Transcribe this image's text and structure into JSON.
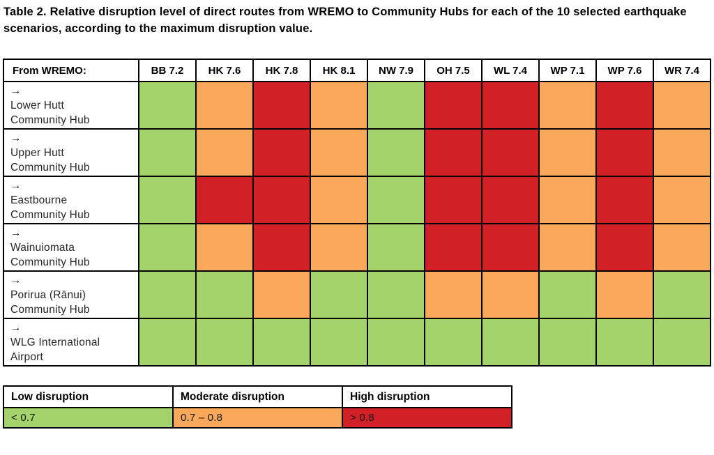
{
  "title": "Table 2. Relative disruption level of direct routes from WREMO to Community Hubs for each of the 10 selected earthquake scenarios, according to the maximum disruption value.",
  "arrow": "→",
  "corner_header": "From WREMO:",
  "colors": {
    "low": "#a5d36b",
    "moderate": "#faa95c",
    "high": "#d22027"
  },
  "chart_data": {
    "type": "heatmap",
    "title": "Table 2. Relative disruption level of direct routes from WREMO to Community Hubs for each of the 10 selected earthquake scenarios, according to the maximum disruption value.",
    "x_categories": [
      "BB 7.2",
      "HK 7.6",
      "HK 7.8",
      "HK 8.1",
      "NW 7.9",
      "OH 7.5",
      "WL 7.4",
      "WP 7.1",
      "WP 7.6",
      "WR 7.4"
    ],
    "y_categories": [
      "Lower Hutt Community Hub",
      "Upper Hutt Community Hub",
      "Eastbourne Community Hub",
      "Wainuiomata Community Hub",
      "Porirua (Rānui) Community Hub",
      "WLG International Airport"
    ],
    "y_labels_two_line": [
      [
        "Lower Hutt",
        "Community Hub"
      ],
      [
        "Upper Hutt",
        "Community Hub"
      ],
      [
        "Eastbourne",
        "Community Hub"
      ],
      [
        "Wainuiomata",
        "Community Hub"
      ],
      [
        "Porirua (Rānui)",
        "Community Hub"
      ],
      [
        "WLG International",
        "Airport"
      ]
    ],
    "values": [
      [
        "low",
        "moderate",
        "high",
        "moderate",
        "low",
        "high",
        "high",
        "moderate",
        "high",
        "moderate"
      ],
      [
        "low",
        "moderate",
        "high",
        "moderate",
        "low",
        "high",
        "high",
        "moderate",
        "high",
        "moderate"
      ],
      [
        "low",
        "high",
        "high",
        "moderate",
        "low",
        "high",
        "high",
        "moderate",
        "high",
        "moderate"
      ],
      [
        "low",
        "moderate",
        "high",
        "moderate",
        "low",
        "high",
        "high",
        "moderate",
        "high",
        "moderate"
      ],
      [
        "low",
        "low",
        "moderate",
        "low",
        "low",
        "moderate",
        "moderate",
        "low",
        "moderate",
        "low"
      ],
      [
        "low",
        "low",
        "low",
        "low",
        "low",
        "low",
        "low",
        "low",
        "low",
        "low"
      ]
    ],
    "value_scale": {
      "low": "< 0.7",
      "moderate": "0.7 – 0.8",
      "high": "> 0.8"
    },
    "legend_position": "bottom"
  },
  "legend": {
    "items": [
      {
        "label": "Low disruption",
        "range": "< 0.7",
        "level": "low"
      },
      {
        "label": "Moderate disruption",
        "range": "0.7 – 0.8",
        "level": "moderate"
      },
      {
        "label": "High disruption",
        "range": "> 0.8",
        "level": "high"
      }
    ]
  }
}
